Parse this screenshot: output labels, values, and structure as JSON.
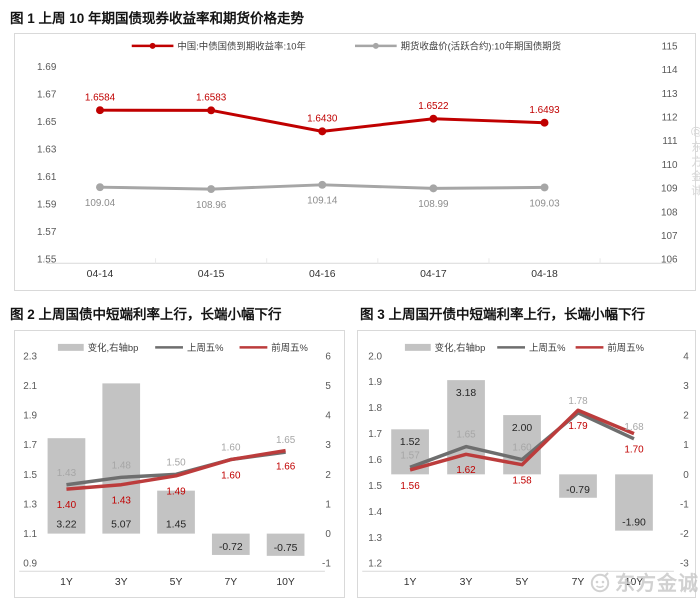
{
  "page": {
    "background": "#ffffff"
  },
  "colors": {
    "red": "#c00000",
    "gray_line": "#a6a6a6",
    "dark_line": "#6e6e6e",
    "bar_fill": "#c3c3c3",
    "axis_text": "#595959",
    "x_label": "#333333",
    "bar_label": "#262626",
    "legend_text": "#404040",
    "panel_border": "#d9d9d9",
    "watermark": "#c6c6c6"
  },
  "watermarks": {
    "side_vertical": "@东方金诚",
    "corner_text": "东方金诚"
  },
  "chart_data": [
    {
      "type": "line",
      "title": "图 1 上周 10 年期国债现券收益率和期货价格走势",
      "categories": [
        "04-14",
        "04-15",
        "04-16",
        "04-17",
        "04-18"
      ],
      "series": [
        {
          "name": "中国:中债国债到期收益率:10年",
          "axis": "left",
          "color": "#c00000",
          "label_color": "#c00000",
          "label_pos": "above",
          "values": [
            1.6584,
            1.6583,
            1.643,
            1.6522,
            1.6493
          ],
          "labels": [
            "1.6584",
            "1.6583",
            "1.6430",
            "1.6522",
            "1.6493"
          ]
        },
        {
          "name": "期货收盘价(活跃合约):10年期国债期货",
          "axis": "right",
          "color": "#a6a6a6",
          "label_color": "#8c8c8c",
          "label_pos": "below",
          "values": [
            109.04,
            108.96,
            109.14,
            108.99,
            109.03
          ],
          "labels": [
            "109.04",
            "108.96",
            "109.14",
            "108.99",
            "109.03"
          ]
        }
      ],
      "left_axis": {
        "min": 1.55,
        "max": 1.69,
        "ticks": [
          "1.69",
          "1.67",
          "1.65",
          "1.63",
          "1.61",
          "1.59",
          "1.57",
          "1.55"
        ]
      },
      "right_axis": {
        "min": 106,
        "max": 115,
        "ticks": [
          "115",
          "114",
          "113",
          "112",
          "111",
          "110",
          "109",
          "108",
          "107",
          "106"
        ]
      },
      "legend_position": "top",
      "grid": false
    },
    {
      "type": "bar+line",
      "title": "图 2 上周国债中短端利率上行，长端小幅下行",
      "categories": [
        "1Y",
        "3Y",
        "5Y",
        "7Y",
        "10Y"
      ],
      "bar_series": {
        "name": "变化,右轴bp",
        "axis": "right",
        "color": "#c3c3c3",
        "values": [
          3.22,
          5.07,
          1.45,
          -0.72,
          -0.75
        ],
        "labels": [
          "3.22",
          "5.07",
          "1.45",
          "-0.72",
          "-0.75"
        ]
      },
      "line_series": [
        {
          "name": "上周五%",
          "axis": "left",
          "color": "#6e6e6e",
          "label_color": "#a6a6a6",
          "label_pos": "above",
          "values": [
            1.43,
            1.48,
            1.5,
            1.6,
            1.65
          ],
          "labels": [
            "1.43",
            "1.48",
            "1.50",
            "1.60",
            "1.65"
          ]
        },
        {
          "name": "前周五%",
          "axis": "left",
          "color": "#bc3c3c",
          "label_color": "#c00000",
          "label_pos": "below",
          "values": [
            1.4,
            1.43,
            1.49,
            1.6,
            1.66
          ],
          "labels": [
            "1.40",
            "1.43",
            "1.49",
            "1.60",
            "1.66"
          ]
        }
      ],
      "left_axis": {
        "min": 0.9,
        "max": 2.3,
        "ticks": [
          "2.3",
          "2.1",
          "1.9",
          "1.7",
          "1.5",
          "1.3",
          "1.1",
          "0.9"
        ]
      },
      "right_axis": {
        "min": -1,
        "max": 6,
        "ticks": [
          "6",
          "5",
          "4",
          "3",
          "2",
          "1",
          "0",
          "-1"
        ]
      },
      "legend_position": "top",
      "grid": false
    },
    {
      "type": "bar+line",
      "title": "图 3 上周国开债中短端利率上行，长端小幅下行",
      "categories": [
        "1Y",
        "3Y",
        "5Y",
        "7Y",
        "10Y"
      ],
      "bar_series": {
        "name": "变化,右轴bp",
        "axis": "right",
        "color": "#c3c3c3",
        "values": [
          1.52,
          3.18,
          2.0,
          -0.79,
          -1.9
        ],
        "labels": [
          "1.52",
          "3.18",
          "2.00",
          "-0.79",
          "-1.90"
        ]
      },
      "line_series": [
        {
          "name": "上周五%",
          "axis": "left",
          "color": "#6e6e6e",
          "label_color": "#a6a6a6",
          "label_pos": "above",
          "values": [
            1.57,
            1.65,
            1.6,
            1.78,
            1.68
          ],
          "labels": [
            "1.57",
            "1.65",
            "1.60",
            "1.78",
            "1.68"
          ]
        },
        {
          "name": "前周五%",
          "axis": "left",
          "color": "#bc3c3c",
          "label_color": "#c00000",
          "label_pos": "below",
          "values": [
            1.56,
            1.62,
            1.58,
            1.79,
            1.7
          ],
          "labels": [
            "1.56",
            "1.62",
            "1.58",
            "1.79",
            "1.70"
          ]
        }
      ],
      "left_axis": {
        "min": 1.2,
        "max": 2.0,
        "ticks": [
          "2.0",
          "1.9",
          "1.8",
          "1.7",
          "1.6",
          "1.5",
          "1.4",
          "1.3",
          "1.2"
        ]
      },
      "right_axis": {
        "min": -3,
        "max": 4,
        "ticks": [
          "4",
          "3",
          "2",
          "1",
          "0",
          "-1",
          "-2",
          "-3"
        ]
      },
      "legend_position": "top",
      "grid": false
    }
  ]
}
